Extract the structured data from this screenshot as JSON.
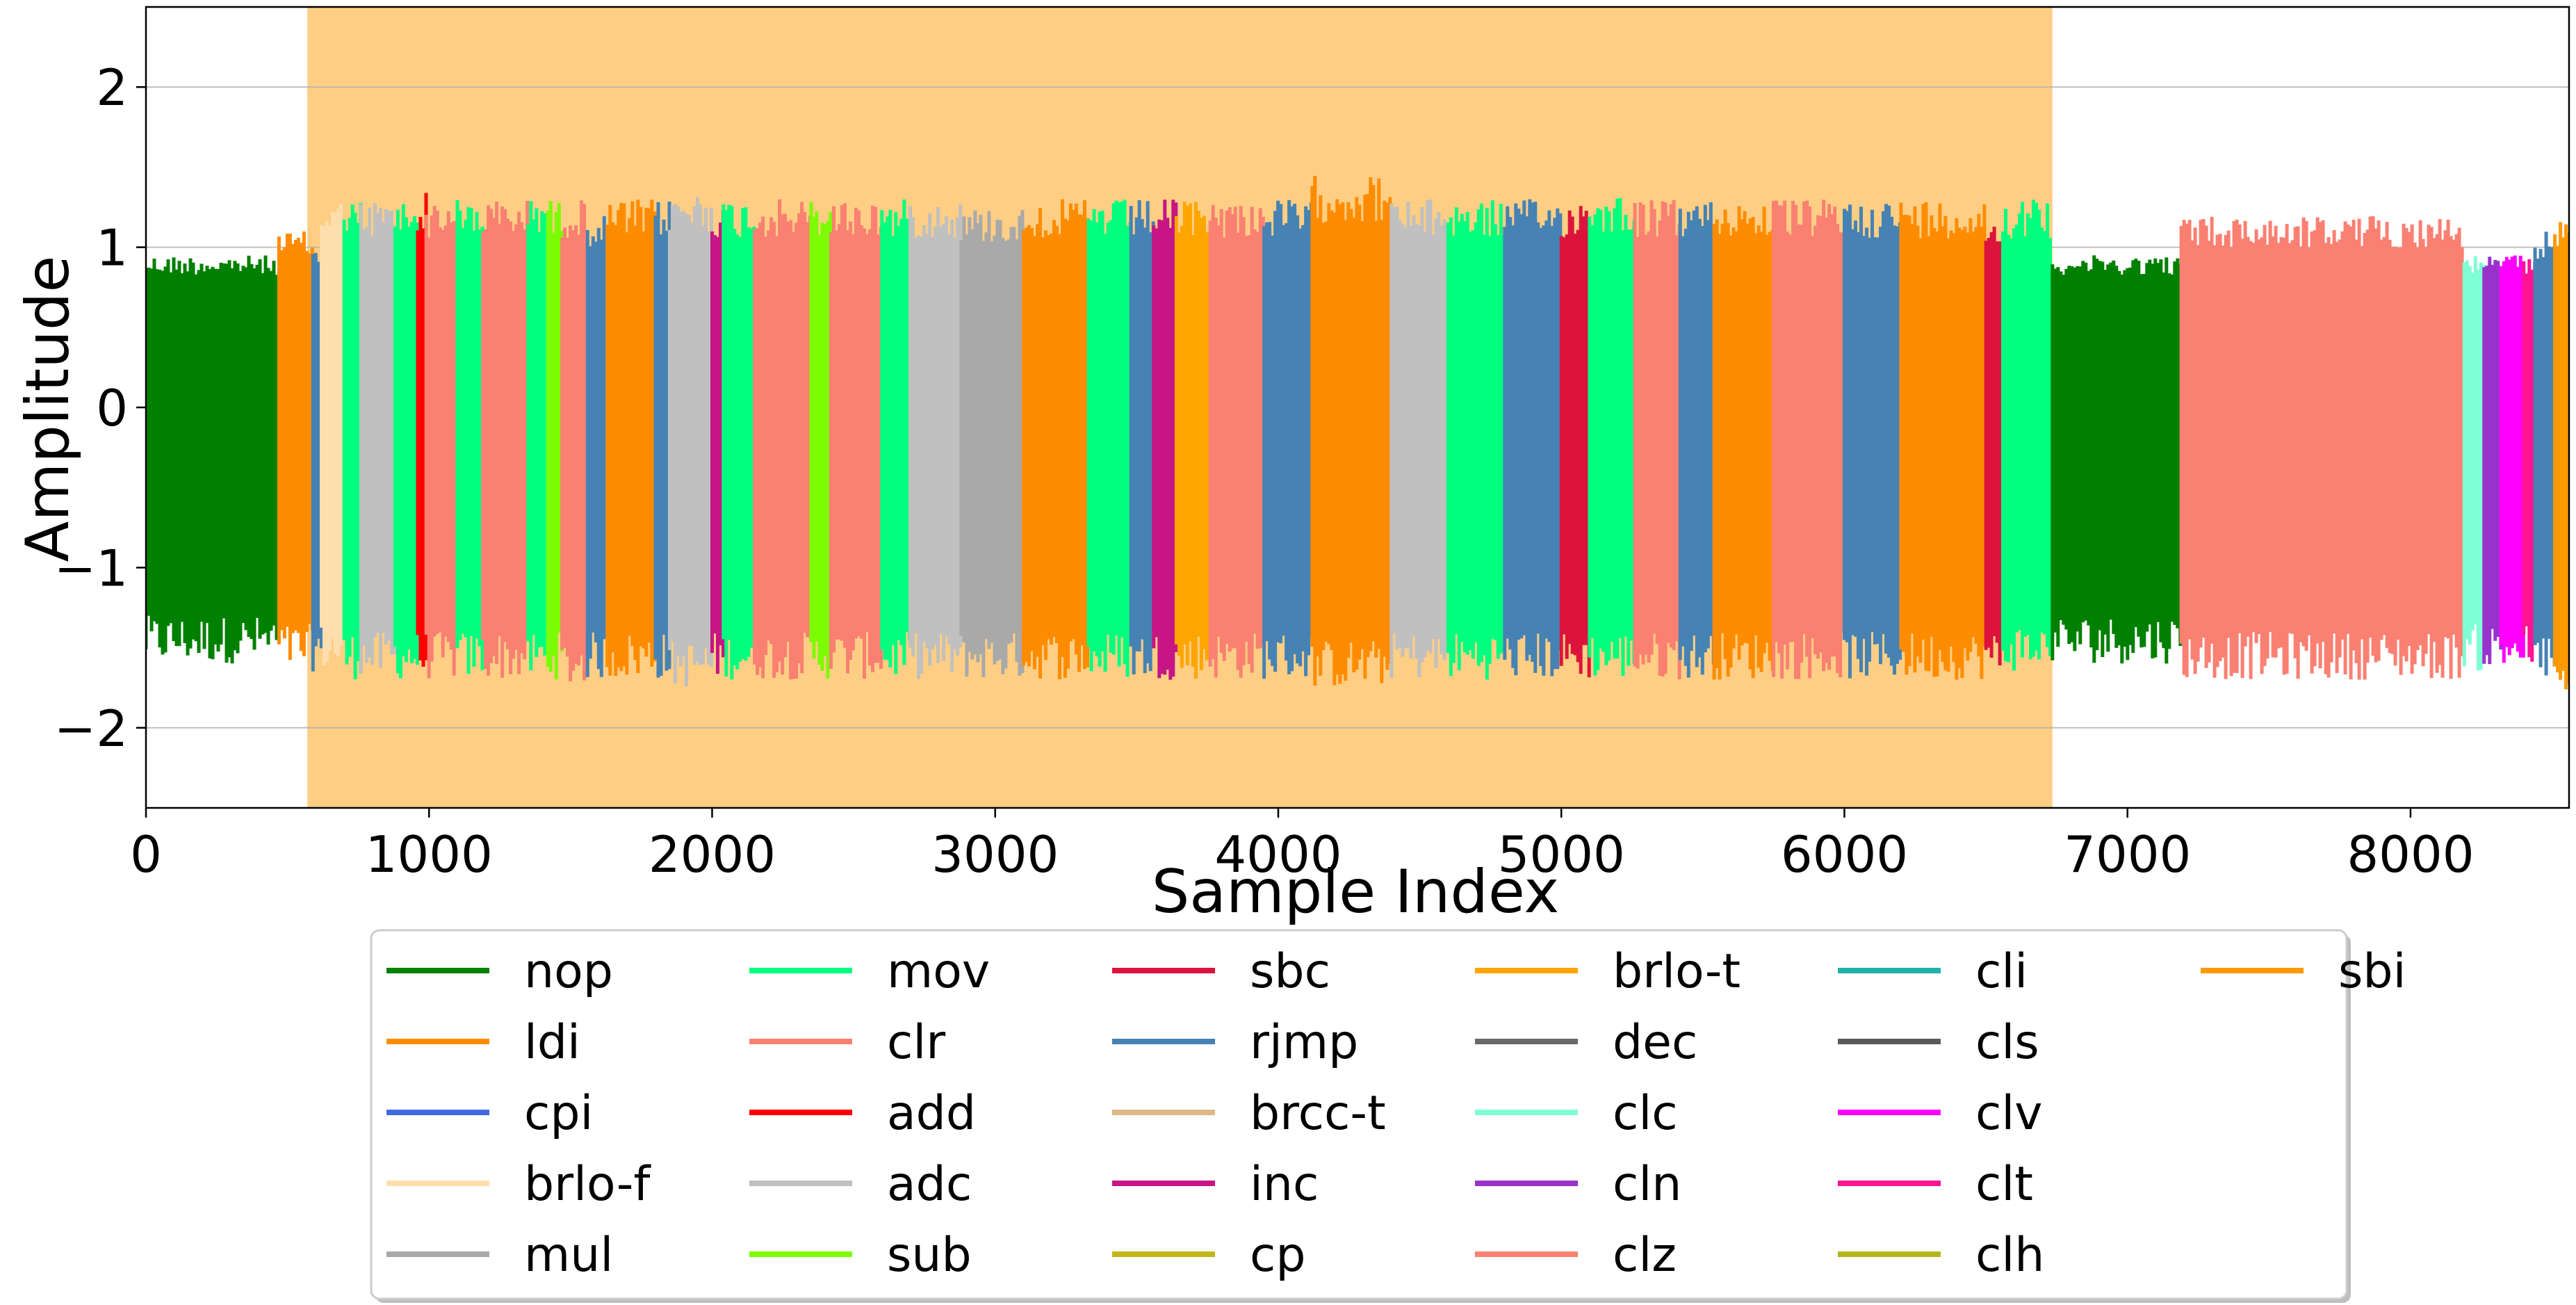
{
  "chart_data": {
    "type": "line",
    "title": "",
    "xlabel": "Sample Index",
    "ylabel": "Amplitude",
    "xlim": [
      0,
      8560
    ],
    "ylim": [
      -2.5,
      2.5
    ],
    "xticks": [
      0,
      1000,
      2000,
      3000,
      4000,
      5000,
      6000,
      7000,
      8000
    ],
    "yticks": [
      2,
      1,
      0,
      -1,
      -2
    ],
    "ytick_labels": [
      "2",
      "1",
      "0",
      "−1",
      "−2"
    ],
    "grid": "horizontal",
    "highlight_region": {
      "x_start": 570,
      "x_end": 6735,
      "color": "#fdce84"
    },
    "legend": {
      "placement": "below",
      "columns": 6
    },
    "series": [
      {
        "name": "nop",
        "color": "#008000"
      },
      {
        "name": "ldi",
        "color": "#ff8c00"
      },
      {
        "name": "cpi",
        "color": "#4169e1"
      },
      {
        "name": "brlo-f",
        "color": "#ffdead"
      },
      {
        "name": "mul",
        "color": "#a9a9a9"
      },
      {
        "name": "mov",
        "color": "#00ff7f"
      },
      {
        "name": "clr",
        "color": "#fa8072"
      },
      {
        "name": "add",
        "color": "#ff0000"
      },
      {
        "name": "adc",
        "color": "#c0c0c0"
      },
      {
        "name": "sub",
        "color": "#7cfc00"
      },
      {
        "name": "sbc",
        "color": "#dc143c"
      },
      {
        "name": "rjmp",
        "color": "#4682b4"
      },
      {
        "name": "brcc-t",
        "color": "#deb887"
      },
      {
        "name": "inc",
        "color": "#c71585"
      },
      {
        "name": "cp",
        "color": "#c2b61a"
      },
      {
        "name": "brlo-t",
        "color": "#ffa500"
      },
      {
        "name": "dec",
        "color": "#696969"
      },
      {
        "name": "clc",
        "color": "#7fffd4"
      },
      {
        "name": "cln",
        "color": "#9932cc"
      },
      {
        "name": "clz",
        "color": "#fa8072"
      },
      {
        "name": "cli",
        "color": "#20b2aa"
      },
      {
        "name": "cls",
        "color": "#5a5a5a"
      },
      {
        "name": "clv",
        "color": "#ff00ff"
      },
      {
        "name": "clt",
        "color": "#ff1493"
      },
      {
        "name": "clh",
        "color": "#b5b520"
      },
      {
        "name": "sbi",
        "color": "#ff9900"
      }
    ],
    "segments": [
      {
        "op": "nop",
        "x": [
          0,
          470
        ],
        "y_range": [
          -1.6,
          0.95
        ]
      },
      {
        "op": "ldi",
        "x": [
          470,
          590
        ],
        "y_range": [
          -1.65,
          1.1
        ]
      },
      {
        "op": "rjmp",
        "x": [
          590,
          620
        ],
        "y_range": [
          -1.65,
          1.0
        ]
      },
      {
        "op": "brlo-f",
        "x": [
          620,
          700
        ],
        "y_range": [
          -1.65,
          1.3
        ]
      },
      {
        "op": "mov",
        "x": [
          700,
          760
        ],
        "y_range": [
          -1.7,
          1.3
        ]
      },
      {
        "op": "adc",
        "x": [
          760,
          880
        ],
        "y_range": [
          -1.7,
          1.3
        ]
      },
      {
        "op": "mov",
        "x": [
          880,
          960
        ],
        "y_range": [
          -1.7,
          1.3
        ]
      },
      {
        "op": "add",
        "x": [
          960,
          990
        ],
        "y_range": [
          -1.7,
          1.35
        ]
      },
      {
        "op": "clr",
        "x": [
          990,
          1100
        ],
        "y_range": [
          -1.7,
          1.3
        ]
      },
      {
        "op": "mov",
        "x": [
          1100,
          1190
        ],
        "y_range": [
          -1.7,
          1.3
        ]
      },
      {
        "op": "clr",
        "x": [
          1190,
          1350
        ],
        "y_range": [
          -1.7,
          1.3
        ]
      },
      {
        "op": "mov",
        "x": [
          1350,
          1420
        ],
        "y_range": [
          -1.7,
          1.35
        ]
      },
      {
        "op": "sub",
        "x": [
          1420,
          1470
        ],
        "y_range": [
          -1.7,
          1.3
        ]
      },
      {
        "op": "clr",
        "x": [
          1470,
          1560
        ],
        "y_range": [
          -1.75,
          1.3
        ]
      },
      {
        "op": "rjmp",
        "x": [
          1560,
          1630
        ],
        "y_range": [
          -1.7,
          1.2
        ]
      },
      {
        "op": "ldi",
        "x": [
          1630,
          1800
        ],
        "y_range": [
          -1.7,
          1.3
        ]
      },
      {
        "op": "rjmp",
        "x": [
          1800,
          1850
        ],
        "y_range": [
          -1.7,
          1.3
        ]
      },
      {
        "op": "adc",
        "x": [
          1850,
          2000
        ],
        "y_range": [
          -1.75,
          1.35
        ]
      },
      {
        "op": "inc",
        "x": [
          2000,
          2040
        ],
        "y_range": [
          -1.7,
          1.3
        ]
      },
      {
        "op": "mov",
        "x": [
          2040,
          2150
        ],
        "y_range": [
          -1.7,
          1.3
        ]
      },
      {
        "op": "clr",
        "x": [
          2150,
          2350
        ],
        "y_range": [
          -1.7,
          1.3
        ]
      },
      {
        "op": "sub",
        "x": [
          2350,
          2420
        ],
        "y_range": [
          -1.7,
          1.3
        ]
      },
      {
        "op": "clr",
        "x": [
          2420,
          2600
        ],
        "y_range": [
          -1.7,
          1.3
        ]
      },
      {
        "op": "mov",
        "x": [
          2600,
          2700
        ],
        "y_range": [
          -1.7,
          1.3
        ]
      },
      {
        "op": "adc",
        "x": [
          2700,
          2880
        ],
        "y_range": [
          -1.7,
          1.3
        ]
      },
      {
        "op": "mul",
        "x": [
          2880,
          3100
        ],
        "y_range": [
          -1.7,
          1.25
        ]
      },
      {
        "op": "ldi",
        "x": [
          3100,
          3330
        ],
        "y_range": [
          -1.7,
          1.3
        ]
      },
      {
        "op": "mov",
        "x": [
          3330,
          3480
        ],
        "y_range": [
          -1.7,
          1.3
        ]
      },
      {
        "op": "rjmp",
        "x": [
          3480,
          3560
        ],
        "y_range": [
          -1.7,
          1.3
        ]
      },
      {
        "op": "inc",
        "x": [
          3560,
          3640
        ],
        "y_range": [
          -1.7,
          1.3
        ]
      },
      {
        "op": "brlo-t",
        "x": [
          3640,
          3760
        ],
        "y_range": [
          -1.7,
          1.3
        ]
      },
      {
        "op": "clr",
        "x": [
          3760,
          3950
        ],
        "y_range": [
          -1.7,
          1.3
        ]
      },
      {
        "op": "rjmp",
        "x": [
          3950,
          4120
        ],
        "y_range": [
          -1.7,
          1.3
        ]
      },
      {
        "op": "ldi",
        "x": [
          4120,
          4400
        ],
        "y_range": [
          -1.75,
          1.45
        ]
      },
      {
        "op": "adc",
        "x": [
          4400,
          4600
        ],
        "y_range": [
          -1.7,
          1.3
        ]
      },
      {
        "op": "mov",
        "x": [
          4600,
          4800
        ],
        "y_range": [
          -1.7,
          1.3
        ]
      },
      {
        "op": "rjmp",
        "x": [
          4800,
          5000
        ],
        "y_range": [
          -1.7,
          1.3
        ]
      },
      {
        "op": "sbc",
        "x": [
          5000,
          5100
        ],
        "y_range": [
          -1.7,
          1.3
        ]
      },
      {
        "op": "mov",
        "x": [
          5100,
          5260
        ],
        "y_range": [
          -1.7,
          1.35
        ]
      },
      {
        "op": "clr",
        "x": [
          5260,
          5420
        ],
        "y_range": [
          -1.7,
          1.3
        ]
      },
      {
        "op": "rjmp",
        "x": [
          5420,
          5540
        ],
        "y_range": [
          -1.7,
          1.3
        ]
      },
      {
        "op": "ldi",
        "x": [
          5540,
          5750
        ],
        "y_range": [
          -1.7,
          1.3
        ]
      },
      {
        "op": "clr",
        "x": [
          5750,
          6000
        ],
        "y_range": [
          -1.7,
          1.3
        ]
      },
      {
        "op": "rjmp",
        "x": [
          6000,
          6200
        ],
        "y_range": [
          -1.7,
          1.3
        ]
      },
      {
        "op": "ldi",
        "x": [
          6200,
          6500
        ],
        "y_range": [
          -1.7,
          1.3
        ]
      },
      {
        "op": "sbc",
        "x": [
          6500,
          6560
        ],
        "y_range": [
          -1.7,
          1.2
        ]
      },
      {
        "op": "mov",
        "x": [
          6560,
          6735
        ],
        "y_range": [
          -1.65,
          1.3
        ]
      },
      {
        "op": "nop",
        "x": [
          6735,
          7190
        ],
        "y_range": [
          -1.6,
          0.95
        ]
      },
      {
        "op": "clz",
        "x": [
          7190,
          8190
        ],
        "y_range": [
          -1.7,
          1.2
        ]
      },
      {
        "op": "clc",
        "x": [
          8190,
          8260
        ],
        "y_range": [
          -1.65,
          0.95
        ]
      },
      {
        "op": "cln",
        "x": [
          8260,
          8320
        ],
        "y_range": [
          -1.65,
          0.95
        ]
      },
      {
        "op": "clv",
        "x": [
          8320,
          8400
        ],
        "y_range": [
          -1.65,
          0.95
        ]
      },
      {
        "op": "clt",
        "x": [
          8400,
          8440
        ],
        "y_range": [
          -1.65,
          0.95
        ]
      },
      {
        "op": "rjmp",
        "x": [
          8440,
          8510
        ],
        "y_range": [
          -1.7,
          1.1
        ]
      },
      {
        "op": "sbi",
        "x": [
          8510,
          8560
        ],
        "y_range": [
          -1.9,
          1.2
        ]
      }
    ]
  }
}
